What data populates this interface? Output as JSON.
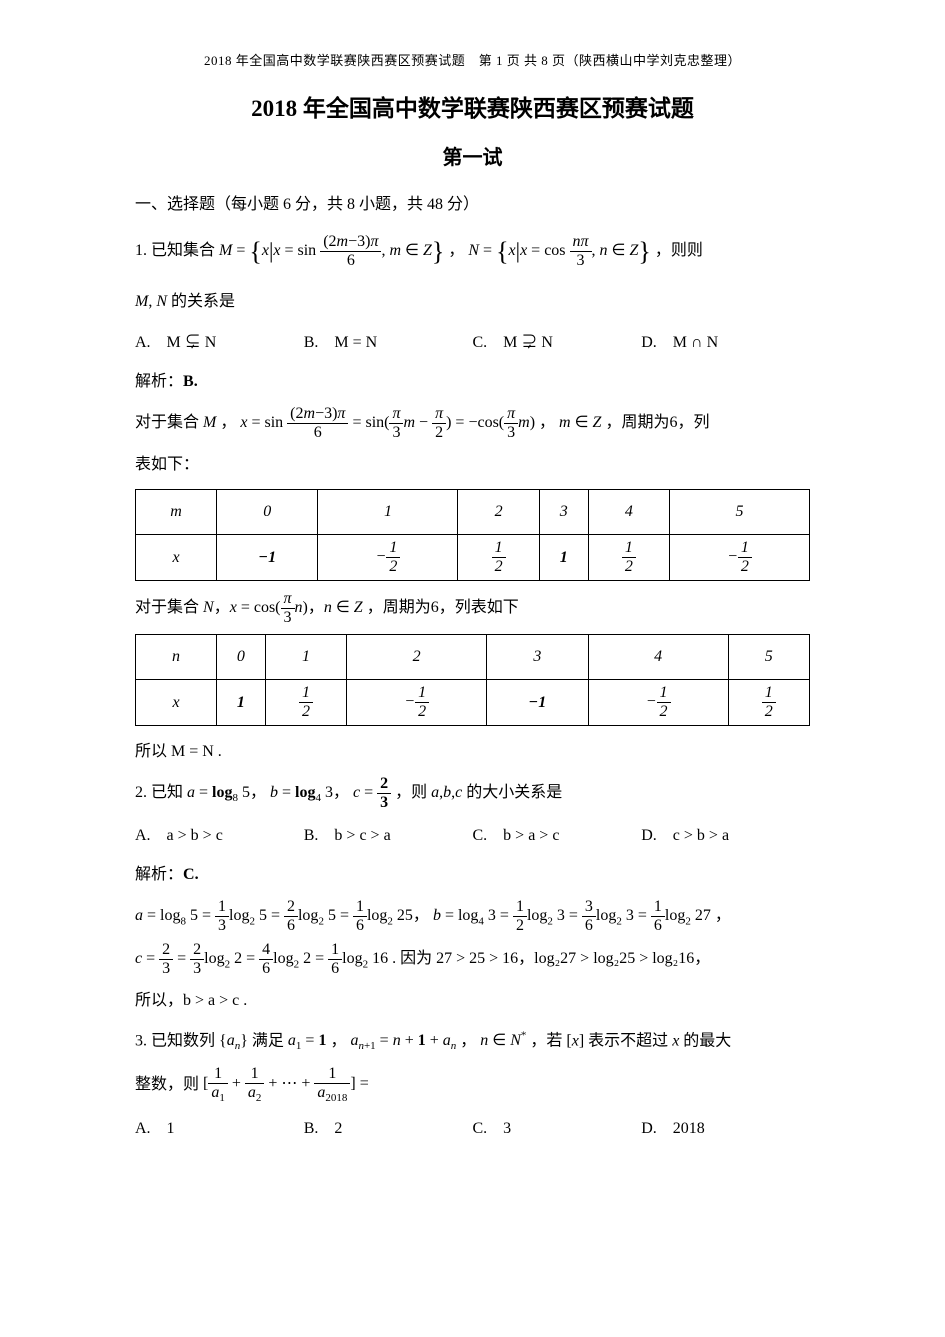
{
  "header": "2018 年全国高中数学联赛陕西赛区预赛试题　第 1 页 共 8 页（陕西横山中学刘克忠整理）",
  "title": "2018 年全国高中数学联赛陕西赛区预赛试题",
  "subtitle": "第一试",
  "section1": "一、选择题（每小题 6 分，共 8 小题，共 48 分）",
  "q1": {
    "prefix": "1. 已知集合",
    "Mtail": "，",
    "Ntail": "，则",
    "rel_line": "的关系是",
    "optA": "A.　M ⊊ N",
    "optB": "B.　M = N",
    "optC": "C.　M ⊋ N",
    "optD": "D.　M ∩ N"
  },
  "sol1": {
    "label": "解析：",
    "ans": "B.",
    "line1_pre": "对于集合",
    "line1_mid": "，",
    "line1_post": "，",
    "line1_tail": "，周期为6，列",
    "line1_end": "表如下：",
    "line2_pre": "对于集合",
    "line2_tail": "，周期为6，列表如下",
    "table1": {
      "head": [
        "m",
        "0",
        "1",
        "2",
        "3",
        "4",
        "5"
      ],
      "row_var": "x",
      "row": [
        "-1",
        "-1/2",
        "1/2",
        "1",
        "1/2",
        "-1/2"
      ]
    },
    "table2": {
      "head": [
        "n",
        "0",
        "1",
        "2",
        "3",
        "4",
        "5"
      ],
      "row_var": "x",
      "row": [
        "1",
        "1/2",
        "-1/2",
        "-1",
        "-1/2",
        "1/2"
      ]
    },
    "conclusion": "所以 M = N ."
  },
  "q2": {
    "prefix": "2. 已知",
    "mid": "，则",
    "tail": "的大小关系是",
    "optA": "A.　a > b > c",
    "optB": "B.　b > c > a",
    "optC": "C.　b > a > c",
    "optD": "D.　c > b > a"
  },
  "sol2": {
    "label": "解析：",
    "ans": "C.",
    "line_end1": "，",
    "line_end2": ". 因为 27 > 25 > 16，log₂27 > log₂25 > log₂16，",
    "conclusion": "所以，b > a > c ."
  },
  "q3": {
    "prefix": "3. 已知数列",
    "mid1": "满足",
    "mid2": "，",
    "mid3": "，",
    "mid4": "，若",
    "mid5": "表示不超过",
    "tail": "的最大",
    "line2_pre": "整数，则",
    "optA": "A.　1",
    "optB": "B.　2",
    "optC": "C.　3",
    "optD": "D.　2018"
  }
}
